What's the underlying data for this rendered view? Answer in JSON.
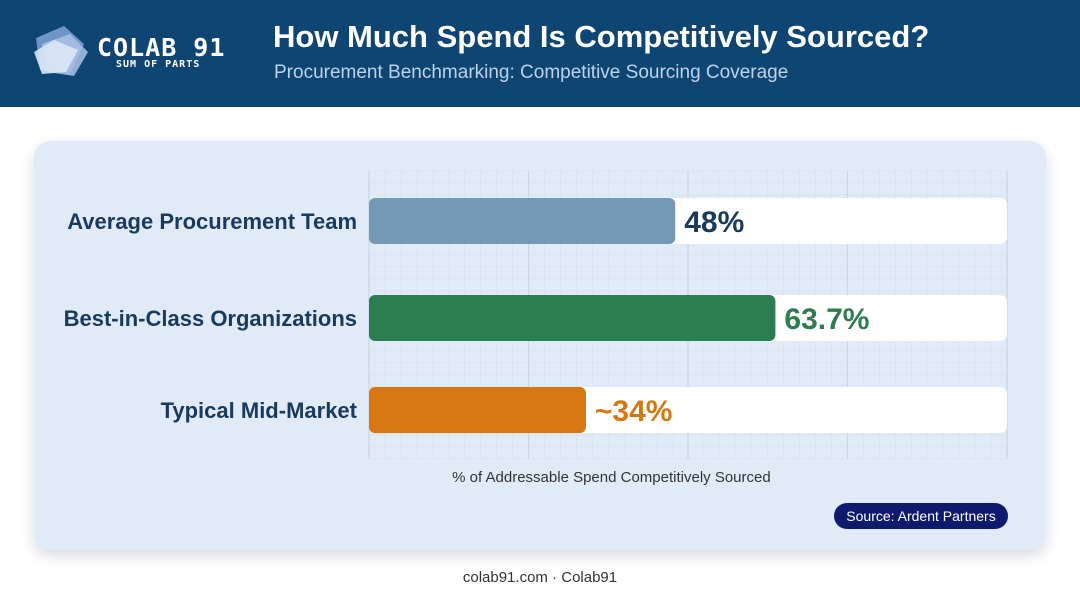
{
  "brand": {
    "name": "COLAB 91",
    "tagline": "SUM OF PARTS"
  },
  "header": {
    "title": "How Much Spend Is Competitively Sourced?",
    "subtitle": "Procurement Benchmarking: Competitive Sourcing Coverage"
  },
  "colors": {
    "header_bg": "#0f4573",
    "card_bg": "#e1ebf8",
    "average": "#7598b4",
    "best_in_class": "#2c7d50",
    "mid_market": "#d6780f",
    "average_label": "#173a5e",
    "badge_bg": "#0e1a6e"
  },
  "chart_data": {
    "type": "bar",
    "orientation": "horizontal",
    "categories": [
      "Average Procurement Team",
      "Best-in-Class Organizations",
      "Typical Mid-Market"
    ],
    "values": [
      48,
      63.7,
      34
    ],
    "value_labels": [
      "48%",
      "63.7%",
      "~34%"
    ],
    "xlabel": "% of Addressable Spend Competitively Sourced",
    "xlim": [
      0,
      100
    ],
    "grid": true
  },
  "source": "Source: Ardent Partners",
  "footer": "colab91.com · Colab91"
}
